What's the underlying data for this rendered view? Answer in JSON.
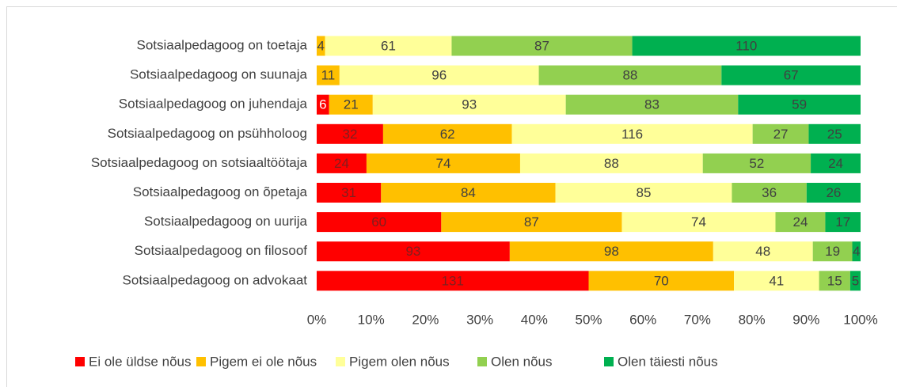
{
  "chart_data": {
    "type": "stacked-bar-100",
    "categories": [
      "Sotsiaalpedagoog on toetaja",
      "Sotsiaalpedagoog on suunaja",
      "Sotsiaalpedagoog on juhendaja",
      "Sotsiaalpedagoog on psühholoog",
      "Sotsiaalpedagoog on sotsiaaltöötaja",
      "Sotsiaalpedagoog on õpetaja",
      "Sotsiaalpedagoog on uurija",
      "Sotsiaalpedagoog on filosoof",
      "Sotsiaalpedagoog on advokaat"
    ],
    "series": [
      {
        "name": "Ei ole üldse nõus",
        "color": "#ff0000",
        "values": [
          0,
          0,
          6,
          32,
          24,
          31,
          60,
          93,
          131
        ]
      },
      {
        "name": "Pigem ei ole nõus",
        "color": "#ffc000",
        "values": [
          4,
          11,
          21,
          62,
          74,
          84,
          87,
          98,
          70
        ]
      },
      {
        "name": "Pigem olen nõus",
        "color": "#ffff99",
        "values": [
          61,
          96,
          93,
          116,
          88,
          85,
          74,
          48,
          41
        ]
      },
      {
        "name": "Olen nõus",
        "color": "#92d050",
        "values": [
          87,
          88,
          83,
          27,
          52,
          36,
          24,
          19,
          15
        ]
      },
      {
        "name": "Olen täiesti nõus",
        "color": "#00b050",
        "values": [
          110,
          67,
          59,
          25,
          24,
          26,
          17,
          4,
          5
        ]
      }
    ],
    "xlim": [
      0,
      100
    ],
    "xticks": [
      {
        "value": 0,
        "label": "0%"
      },
      {
        "value": 10,
        "label": "10%"
      },
      {
        "value": 20,
        "label": "20%"
      },
      {
        "value": 30,
        "label": "30%"
      },
      {
        "value": 40,
        "label": "40%"
      },
      {
        "value": 50,
        "label": "50%"
      },
      {
        "value": 60,
        "label": "60%"
      },
      {
        "value": 70,
        "label": "70%"
      },
      {
        "value": 80,
        "label": "80%"
      },
      {
        "value": 90,
        "label": "90%"
      },
      {
        "value": 100,
        "label": "100%"
      }
    ],
    "legend": "bottom"
  }
}
